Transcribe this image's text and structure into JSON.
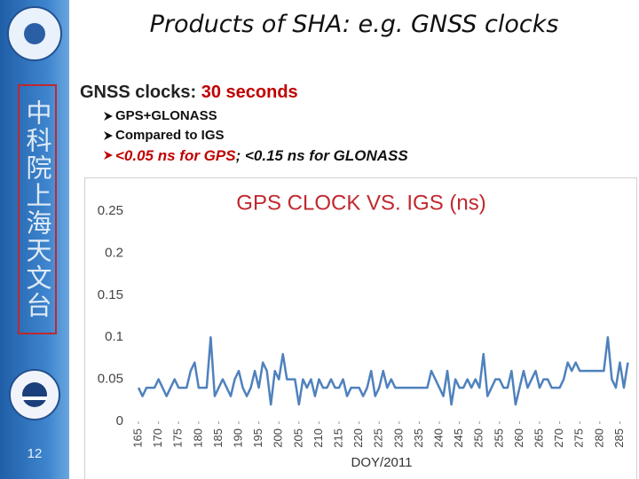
{
  "slide": {
    "title": "Products of SHA: e.g. GNSS clocks",
    "sidebar_text": "中科院上海天文台",
    "page_number": "12",
    "heading": {
      "label": "GNSS clocks: ",
      "value": "30 seconds"
    },
    "bullets": [
      "GPS+GLONASS",
      "Compared to IGS"
    ],
    "highlight_bullet": [
      "<0.05 ns for GPS",
      "; <0.15 ns for GLONASS"
    ]
  },
  "chart_data": {
    "type": "line",
    "title": "GPS CLOCK VS. IGS (ns)",
    "x_label": "DOY/2011",
    "color": "#4f81bd",
    "x": [
      165,
      166,
      167,
      168,
      169,
      170,
      171,
      172,
      173,
      174,
      175,
      176,
      177,
      178,
      179,
      180,
      181,
      182,
      183,
      184,
      185,
      186,
      187,
      188,
      189,
      190,
      191,
      192,
      193,
      194,
      195,
      196,
      197,
      198,
      199,
      200,
      201,
      202,
      203,
      204,
      205,
      206,
      207,
      208,
      209,
      210,
      211,
      212,
      213,
      214,
      215,
      216,
      217,
      218,
      219,
      220,
      221,
      222,
      223,
      224,
      225,
      226,
      227,
      228,
      229,
      230,
      231,
      232,
      233,
      234,
      235,
      236,
      237,
      238,
      239,
      240,
      241,
      242,
      243,
      244,
      245,
      246,
      247,
      248,
      249,
      250,
      251,
      252,
      253,
      254,
      255,
      256,
      257,
      258,
      259,
      260,
      261,
      262,
      263,
      264,
      265,
      266,
      267,
      268,
      269,
      270,
      271,
      272,
      273,
      274,
      275,
      276,
      277,
      278,
      279,
      280,
      281,
      282,
      283,
      284,
      285,
      286,
      287
    ],
    "values": [
      0.04,
      0.03,
      0.04,
      0.04,
      0.04,
      0.05,
      0.04,
      0.03,
      0.04,
      0.05,
      0.04,
      0.04,
      0.04,
      0.06,
      0.07,
      0.04,
      0.04,
      0.04,
      0.1,
      0.03,
      0.04,
      0.05,
      0.04,
      0.03,
      0.05,
      0.06,
      0.04,
      0.03,
      0.04,
      0.06,
      0.04,
      0.07,
      0.06,
      0.02,
      0.06,
      0.05,
      0.08,
      0.05,
      0.05,
      0.05,
      0.02,
      0.05,
      0.04,
      0.05,
      0.03,
      0.05,
      0.04,
      0.04,
      0.05,
      0.04,
      0.04,
      0.05,
      0.03,
      0.04,
      0.04,
      0.04,
      0.03,
      0.04,
      0.06,
      0.03,
      0.04,
      0.06,
      0.04,
      0.05,
      0.04,
      0.04,
      0.04,
      0.04,
      0.04,
      0.04,
      0.04,
      0.04,
      0.04,
      0.06,
      0.05,
      0.04,
      0.03,
      0.06,
      0.02,
      0.05,
      0.04,
      0.04,
      0.05,
      0.04,
      0.05,
      0.04,
      0.08,
      0.03,
      0.04,
      0.05,
      0.05,
      0.04,
      0.04,
      0.06,
      0.02,
      0.04,
      0.06,
      0.04,
      0.05,
      0.06,
      0.04,
      0.05,
      0.05,
      0.04,
      0.04,
      0.04,
      0.05,
      0.07,
      0.06,
      0.07,
      0.06,
      0.06,
      0.06,
      0.06,
      0.06,
      0.06,
      0.06,
      0.1,
      0.05,
      0.04,
      0.07,
      0.04,
      0.07
    ],
    "xlim": [
      163,
      288
    ],
    "xticks": [
      165,
      170,
      175,
      180,
      185,
      190,
      195,
      200,
      205,
      210,
      215,
      220,
      225,
      230,
      235,
      240,
      245,
      250,
      255,
      260,
      265,
      270,
      275,
      280,
      285
    ],
    "ylim": [
      0,
      0.25
    ],
    "yticks": [
      0,
      0.05,
      0.1,
      0.15,
      0.2,
      0.25
    ],
    "grid": false
  }
}
